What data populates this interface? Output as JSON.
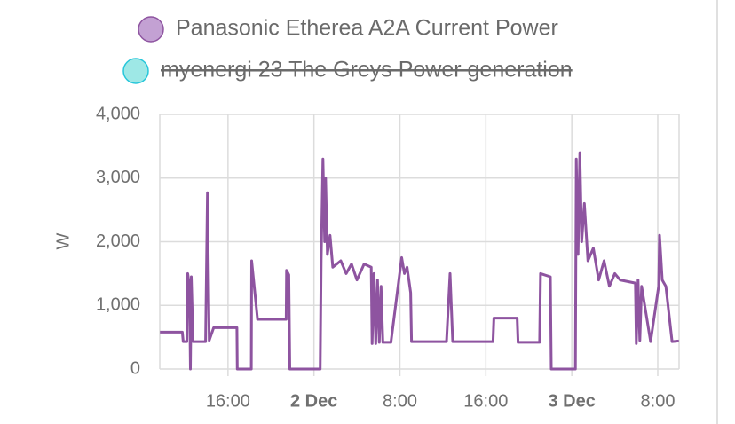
{
  "chart_data": {
    "type": "line",
    "y_label": "W",
    "ylim": [
      0,
      4000
    ],
    "yticks": [
      0,
      {
        "value": 1000,
        "label": "1,000"
      },
      {
        "value": 2000,
        "label": "2,000"
      },
      {
        "value": 3000,
        "label": "3,000"
      },
      {
        "value": 4000,
        "label": "4,000"
      }
    ],
    "xlim": [
      "1 Dec 09:39",
      "3 Dec 09:59"
    ],
    "xticks": [
      {
        "value": "1 Dec 16:00",
        "label": "16:00"
      },
      {
        "value": "2 Dec 00:00",
        "label": "2 Dec"
      },
      {
        "value": "2 Dec 08:00",
        "label": "8:00"
      },
      {
        "value": "2 Dec 16:00",
        "label": "16:00"
      },
      {
        "value": "3 Dec 00:00",
        "label": "3 Dec"
      },
      {
        "value": "3 Dec 08:00",
        "label": "8:00"
      }
    ],
    "grid": true,
    "x": [
      "1 Dec 09:40",
      "1 Dec 11:45",
      "1 Dec 11:50",
      "1 Dec 12:10",
      "1 Dec 12:15",
      "1 Dec 12:25",
      "1 Dec 12:30",
      "1 Dec 12:35",
      "1 Dec 12:45",
      "1 Dec 13:55",
      "1 Dec 14:05",
      "1 Dec 14:15",
      "1 Dec 14:40",
      "1 Dec 16:50",
      "1 Dec 16:52",
      "1 Dec 18:10",
      "1 Dec 18:12",
      "1 Dec 18:30",
      "1 Dec 18:45",
      "1 Dec 21:25",
      "1 Dec 21:27",
      "1 Dec 21:40",
      "1 Dec 21:45",
      "2 Dec 00:35",
      "2 Dec 00:40",
      "2 Dec 00:50",
      "2 Dec 01:00",
      "2 Dec 01:05",
      "2 Dec 01:15",
      "2 Dec 01:30",
      "2 Dec 01:45",
      "2 Dec 02:30",
      "2 Dec 03:00",
      "2 Dec 03:30",
      "2 Dec 04:00",
      "2 Dec 04:40",
      "2 Dec 05:20",
      "2 Dec 05:25",
      "2 Dec 05:35",
      "2 Dec 05:45",
      "2 Dec 05:55",
      "2 Dec 06:05",
      "2 Dec 06:15",
      "2 Dec 06:25",
      "2 Dec 07:10",
      "2 Dec 08:10",
      "2 Dec 08:25",
      "2 Dec 08:40",
      "2 Dec 09:00",
      "2 Dec 09:05",
      "2 Dec 12:20",
      "2 Dec 12:40",
      "2 Dec 12:55",
      "2 Dec 16:40",
      "2 Dec 16:45",
      "2 Dec 18:55",
      "2 Dec 19:00",
      "2 Dec 21:00",
      "2 Dec 21:05",
      "2 Dec 22:00",
      "2 Dec 22:05",
      "3 Dec 00:20",
      "3 Dec 00:25",
      "3 Dec 00:35",
      "3 Dec 00:45",
      "3 Dec 00:55",
      "3 Dec 01:10",
      "3 Dec 01:30",
      "3 Dec 02:00",
      "3 Dec 02:30",
      "3 Dec 03:00",
      "3 Dec 03:30",
      "3 Dec 04:00",
      "3 Dec 04:30",
      "3 Dec 05:55",
      "3 Dec 06:00",
      "3 Dec 06:10",
      "3 Dec 06:20",
      "3 Dec 06:30",
      "3 Dec 07:20",
      "3 Dec 08:05",
      "3 Dec 08:10",
      "3 Dec 08:25",
      "3 Dec 08:45",
      "3 Dec 09:20",
      "3 Dec 09:58"
    ],
    "series": [
      {
        "name": "Panasonic Etherea A2A Current Power",
        "color": "#8e54a0",
        "legend_fill": "#c3a1d3",
        "values": [
          580,
          580,
          430,
          430,
          1500,
          1300,
          0,
          1450,
          430,
          430,
          2770,
          450,
          650,
          650,
          0,
          0,
          1700,
          1200,
          780,
          780,
          1550,
          1480,
          0,
          0,
          1700,
          3300,
          2000,
          3000,
          1800,
          2100,
          1600,
          1700,
          1500,
          1650,
          1400,
          1650,
          1600,
          400,
          1500,
          400,
          1400,
          420,
          1300,
          420,
          420,
          1750,
          1500,
          1600,
          1200,
          430,
          430,
          1500,
          430,
          430,
          800,
          800,
          420,
          420,
          1500,
          1450,
          0,
          0,
          3300,
          1800,
          3400,
          2000,
          2600,
          1700,
          1900,
          1400,
          1700,
          1300,
          1500,
          1400,
          1350,
          400,
          1400,
          450,
          1300,
          430,
          1300,
          2100,
          1400,
          1300,
          430,
          440
        ]
      },
      {
        "name": "myenergi 23 The Greys Power generation",
        "color": "#26c6da",
        "legend_fill": "#9ee8e6",
        "hidden": true
      }
    ]
  }
}
